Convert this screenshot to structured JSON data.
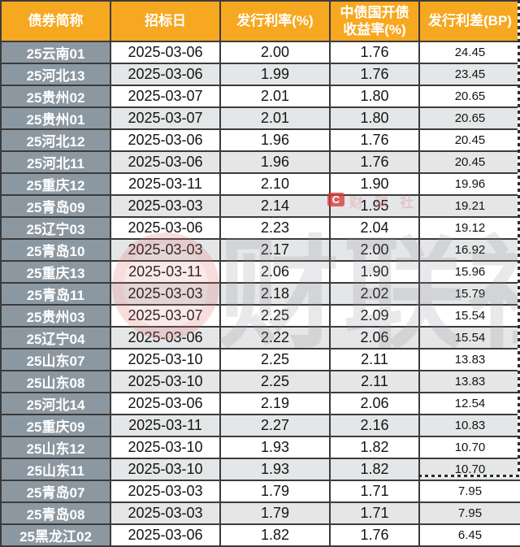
{
  "chart_data": {
    "type": "table",
    "columns": [
      "债券简称",
      "招标日",
      "发行利率(%)",
      "中债国开债\n收益率(%)",
      "发行利差(BP)"
    ],
    "rows": [
      [
        "25云南01",
        "2025-03-06",
        "2.00",
        "1.76",
        "24.45"
      ],
      [
        "25河北13",
        "2025-03-06",
        "1.99",
        "1.76",
        "23.45"
      ],
      [
        "25贵州02",
        "2025-03-07",
        "2.01",
        "1.80",
        "20.65"
      ],
      [
        "25贵州01",
        "2025-03-07",
        "2.01",
        "1.80",
        "20.65"
      ],
      [
        "25河北12",
        "2025-03-06",
        "1.96",
        "1.76",
        "20.45"
      ],
      [
        "25河北11",
        "2025-03-06",
        "1.96",
        "1.76",
        "20.45"
      ],
      [
        "25重庆12",
        "2025-03-11",
        "2.10",
        "1.90",
        "19.96"
      ],
      [
        "25青岛09",
        "2025-03-03",
        "2.14",
        "1.95",
        "19.21"
      ],
      [
        "25辽宁03",
        "2025-03-06",
        "2.23",
        "2.04",
        "19.12"
      ],
      [
        "25青岛10",
        "2025-03-03",
        "2.17",
        "2.00",
        "16.92"
      ],
      [
        "25重庆13",
        "2025-03-11",
        "2.06",
        "1.90",
        "15.96"
      ],
      [
        "25青岛11",
        "2025-03-03",
        "2.18",
        "2.02",
        "15.79"
      ],
      [
        "25贵州03",
        "2025-03-07",
        "2.25",
        "2.09",
        "15.54"
      ],
      [
        "25辽宁04",
        "2025-03-06",
        "2.22",
        "2.06",
        "15.54"
      ],
      [
        "25山东07",
        "2025-03-10",
        "2.25",
        "2.11",
        "13.83"
      ],
      [
        "25山东08",
        "2025-03-10",
        "2.25",
        "2.11",
        "13.83"
      ],
      [
        "25河北14",
        "2025-03-06",
        "2.19",
        "2.06",
        "12.54"
      ],
      [
        "25重庆09",
        "2025-03-11",
        "2.27",
        "2.16",
        "10.83"
      ],
      [
        "25山东12",
        "2025-03-10",
        "1.93",
        "1.82",
        "10.70"
      ],
      [
        "25山东11",
        "2025-03-10",
        "1.93",
        "1.82",
        "10.70"
      ],
      [
        "25青岛07",
        "2025-03-03",
        "1.79",
        "1.71",
        "7.95"
      ],
      [
        "25青岛08",
        "2025-03-03",
        "1.79",
        "1.71",
        "7.95"
      ],
      [
        "25黑龙江02",
        "2025-03-06",
        "1.82",
        "1.76",
        "6.45"
      ]
    ]
  },
  "watermark": {
    "logo_letter": "C",
    "small_text": "财联社",
    "big_text": "财联社"
  },
  "colors": {
    "header_bg": "#F7A821",
    "name_col_bg": "#8C98A1",
    "stripe_bg": "#E4E6E7",
    "grid": "#3B3B3B"
  }
}
